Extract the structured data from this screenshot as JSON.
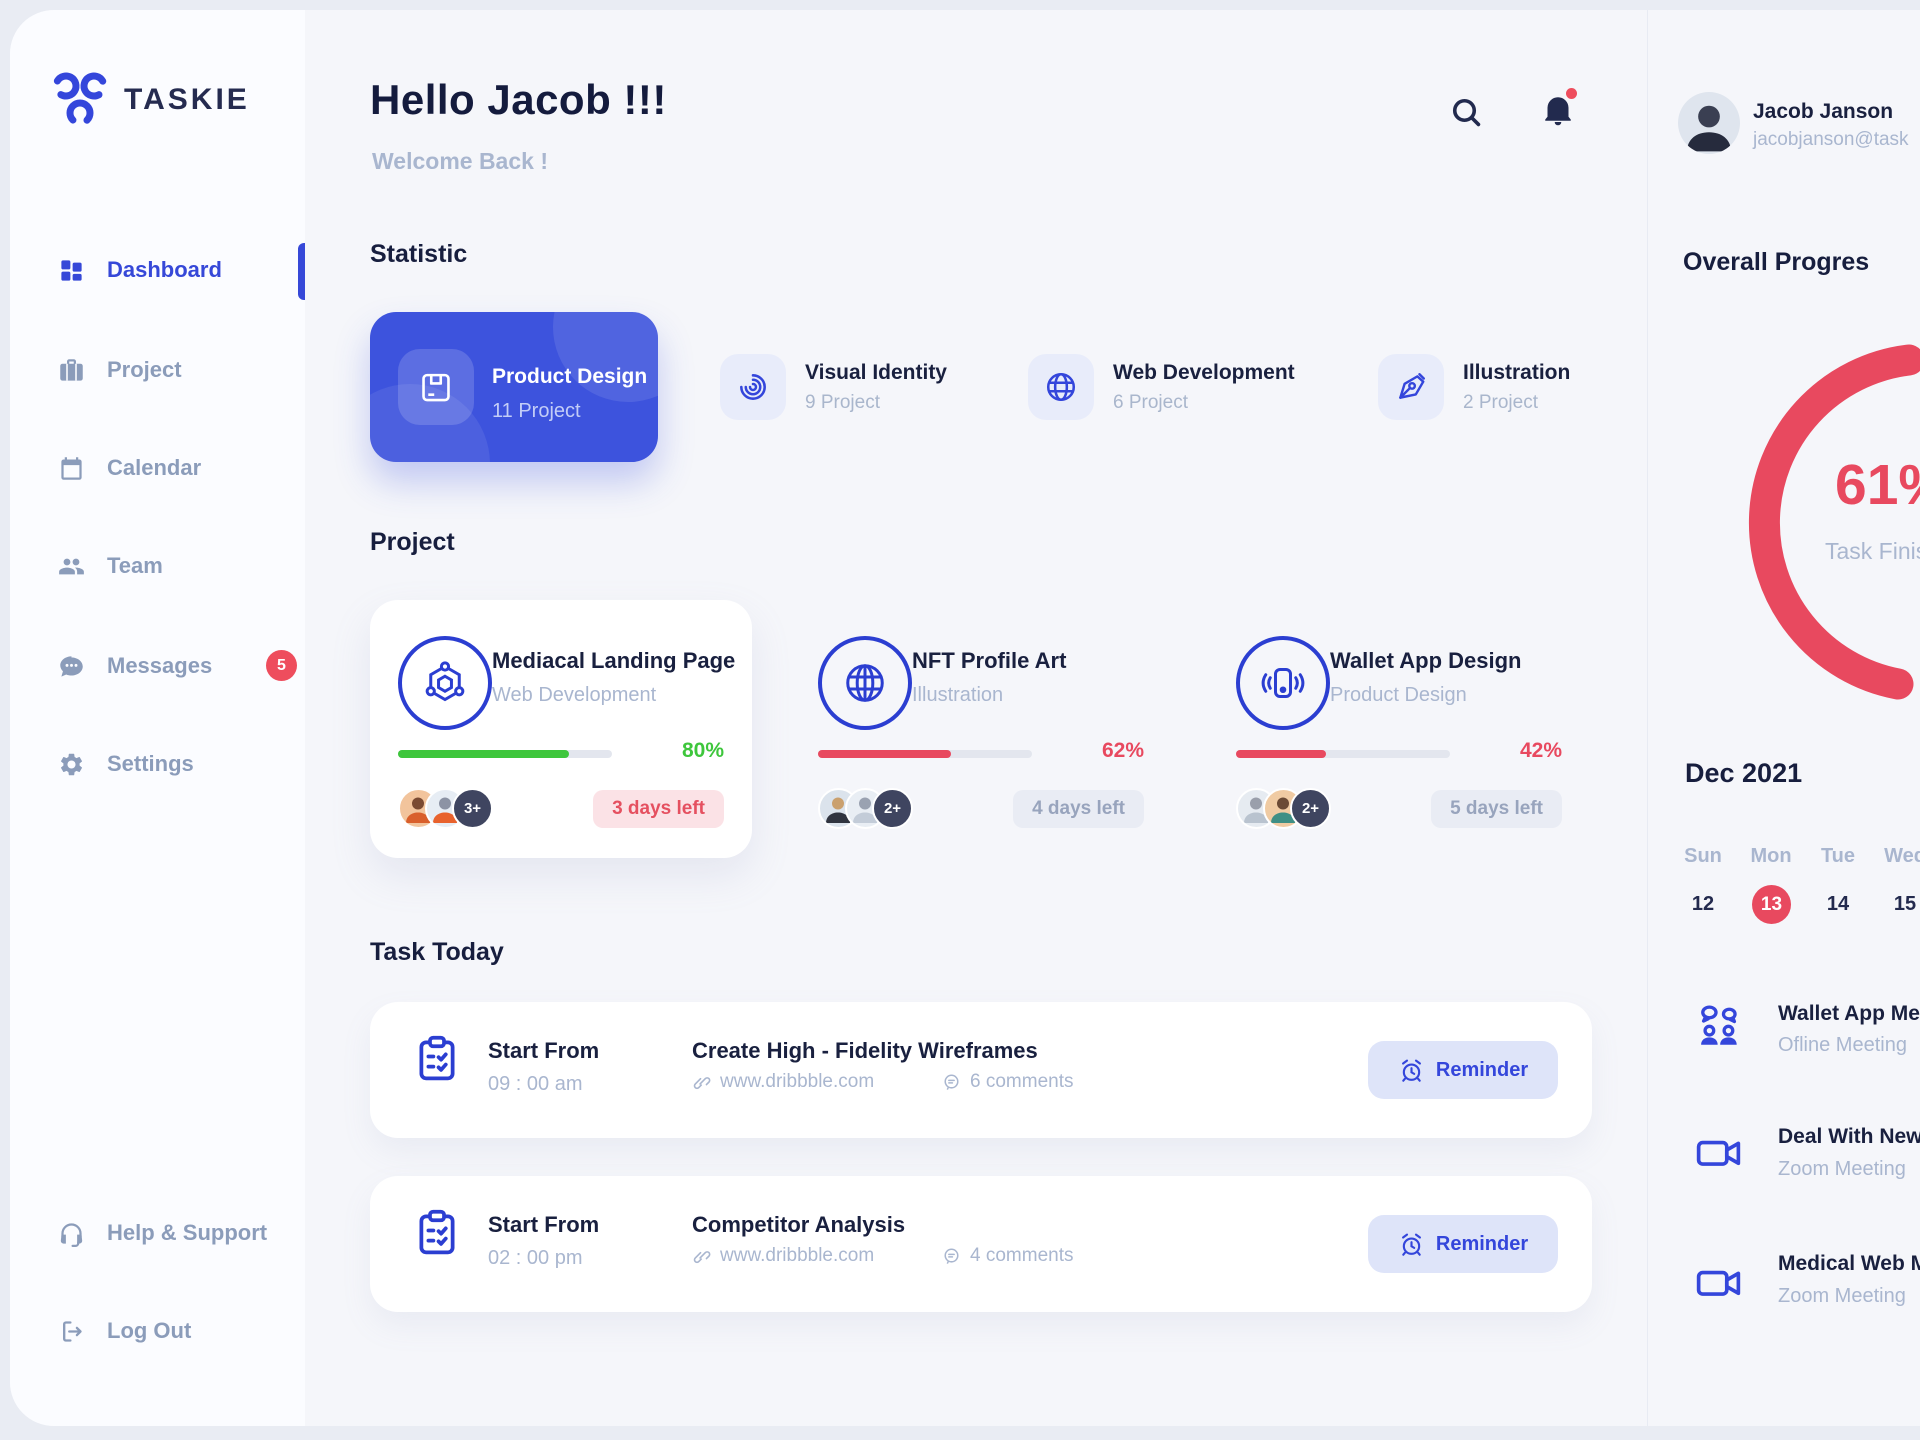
{
  "app": {
    "brand": "TASKIE"
  },
  "colors": {
    "primary_blue": "#3d53dd",
    "active_blue": "#3648d8",
    "icon_blue": "#3446db",
    "dark_text": "#19203f",
    "muted_text": "#a9b6cf",
    "sidebar_icon": "#8b9cba",
    "red": "#e8495f",
    "green": "#3ec63c",
    "lavender_tile": "#e8ecfa",
    "reminder_bg": "#dee4f9",
    "badge_red": "#ee4d5d"
  },
  "sidebar": {
    "items": [
      {
        "label": "Dashboard",
        "icon": "dashboard-grid-icon",
        "active": true
      },
      {
        "label": "Project",
        "icon": "briefcase-icon"
      },
      {
        "label": "Calendar",
        "icon": "calendar-icon"
      },
      {
        "label": "Team",
        "icon": "team-icon"
      },
      {
        "label": "Messages",
        "icon": "chat-bubble-icon",
        "badge": "5"
      },
      {
        "label": "Settings",
        "icon": "gear-icon"
      }
    ],
    "footer": [
      {
        "label": "Help & Support",
        "icon": "headset-icon"
      },
      {
        "label": "Log Out",
        "icon": "logout-icon"
      }
    ]
  },
  "header": {
    "greeting": "Hello Jacob !!!",
    "subtitle": "Welcome Back !",
    "icons": [
      "search-icon",
      "bell-icon"
    ]
  },
  "statistic": {
    "heading": "Statistic",
    "cards": [
      {
        "title": "Product Design",
        "count": "11 Project",
        "icon": "package-box-icon",
        "highlighted": true
      },
      {
        "title": "Visual Identity",
        "count": "9 Project",
        "icon": "swirl-icon"
      },
      {
        "title": "Web Development",
        "count": "6 Project",
        "icon": "globe-icon"
      },
      {
        "title": "Illustration",
        "count": "2 Project",
        "icon": "pen-nib-icon"
      }
    ]
  },
  "projects": {
    "heading": "Project",
    "cards": [
      {
        "title": "Mediacal Landing Page",
        "category": "Web Development",
        "icon": "hexagon-network-icon",
        "progress": 80,
        "progress_label": "80%",
        "bar_color": "green",
        "extra_members": "3+",
        "days_left": "3 days left",
        "urgent": true
      },
      {
        "title": "NFT Profile Art",
        "category": "Illustration",
        "icon": "globe-icon",
        "progress": 62,
        "progress_label": "62%",
        "bar_color": "red",
        "extra_members": "2+",
        "days_left": "4 days left",
        "urgent": false
      },
      {
        "title": "Wallet App Design",
        "category": "Product Design",
        "icon": "phone-vibrate-icon",
        "progress": 42,
        "progress_label": "42%",
        "bar_color": "red",
        "extra_members": "2+",
        "days_left": "5 days left",
        "urgent": false
      }
    ]
  },
  "tasks": {
    "heading": "Task Today",
    "rows": [
      {
        "start_label": "Start From",
        "time": "09 : 00 am",
        "title": "Create High - Fidelity Wireframes",
        "link": "www.dribbble.com",
        "comments": "6 comments",
        "reminder_label": "Reminder"
      },
      {
        "start_label": "Start From",
        "time": "02 : 00 pm",
        "title": "Competitor Analysis",
        "link": "www.dribbble.com",
        "comments": "4 comments",
        "reminder_label": "Reminder"
      }
    ]
  },
  "profile": {
    "name": "Jacob Janson",
    "email": "jacobjanson@task"
  },
  "overall": {
    "heading": "Overall Progres",
    "percent": "61%",
    "percent_value": 61,
    "caption": "Task Finis"
  },
  "calendar": {
    "month": "Dec 2021",
    "weekdays": [
      "Sun",
      "Mon",
      "Tue",
      "Wed"
    ],
    "dates": [
      {
        "day": "12",
        "active": false
      },
      {
        "day": "13",
        "active": true
      },
      {
        "day": "14",
        "active": false
      },
      {
        "day": "15",
        "active": false
      }
    ]
  },
  "meetings": {
    "items": [
      {
        "title": "Wallet App Mee",
        "type": "Ofline Meeting",
        "icon": "people-chat-icon"
      },
      {
        "title": "Deal With New",
        "type": "Zoom Meeting",
        "icon": "video-camera-icon"
      },
      {
        "title": "Medical Web M",
        "type": "Zoom Meeting",
        "icon": "video-camera-icon"
      }
    ]
  }
}
